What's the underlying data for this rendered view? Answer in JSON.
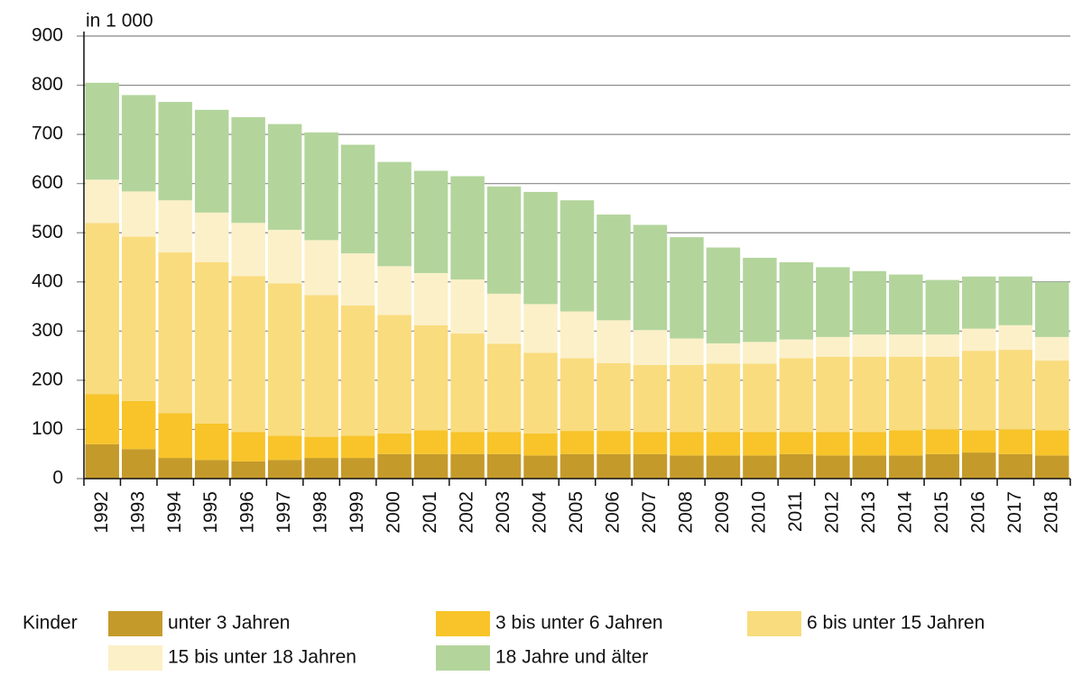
{
  "chart_data": {
    "type": "stacked_bar",
    "unit_label": "in 1 000",
    "legend_title": "Kinder",
    "categories": [
      "1992",
      "1993",
      "1994",
      "1995",
      "1996",
      "1997",
      "1998",
      "1999",
      "2000",
      "2001",
      "2002",
      "2003",
      "2004",
      "2005",
      "2006",
      "2007",
      "2008",
      "2009",
      "2010",
      "2011",
      "2012",
      "2013",
      "2014",
      "2015",
      "2016",
      "2017",
      "2018"
    ],
    "series": [
      {
        "name": "unter 3 Jahren",
        "color": "#c49a2a",
        "values": [
          70,
          60,
          42,
          38,
          35,
          38,
          42,
          42,
          50,
          50,
          50,
          50,
          47,
          50,
          50,
          50,
          47,
          47,
          47,
          50,
          47,
          47,
          47,
          50,
          53,
          50,
          47
        ]
      },
      {
        "name": "3 bis unter 6 Jahren",
        "color": "#f8c42a",
        "values": [
          102,
          98,
          91,
          74,
          60,
          49,
          43,
          45,
          42,
          48,
          45,
          45,
          45,
          47,
          47,
          45,
          48,
          48,
          48,
          45,
          48,
          48,
          51,
          50,
          45,
          50,
          51
        ]
      },
      {
        "name": "6 bis unter 15 Jahren",
        "color": "#f9dc7e",
        "values": [
          348,
          334,
          327,
          328,
          317,
          310,
          288,
          265,
          241,
          214,
          200,
          179,
          164,
          148,
          138,
          136,
          136,
          139,
          139,
          150,
          153,
          153,
          150,
          148,
          162,
          162,
          142
        ]
      },
      {
        "name": "15 bis unter 18 Jahren",
        "color": "#fcf0c8",
        "values": [
          88,
          92,
          106,
          101,
          108,
          109,
          112,
          106,
          99,
          106,
          110,
          102,
          99,
          95,
          87,
          71,
          54,
          41,
          44,
          38,
          40,
          45,
          45,
          45,
          45,
          50,
          48
        ]
      },
      {
        "name": "18 Jahre und älter",
        "color": "#b3d59c",
        "values": [
          197,
          196,
          200,
          209,
          215,
          215,
          219,
          221,
          212,
          208,
          210,
          218,
          228,
          226,
          215,
          214,
          206,
          195,
          171,
          157,
          142,
          129,
          122,
          111,
          106,
          99,
          112
        ]
      }
    ],
    "ylim": [
      0,
      900
    ],
    "yticks": [
      0,
      100,
      200,
      300,
      400,
      500,
      600,
      700,
      800,
      900
    ],
    "grid": true
  }
}
